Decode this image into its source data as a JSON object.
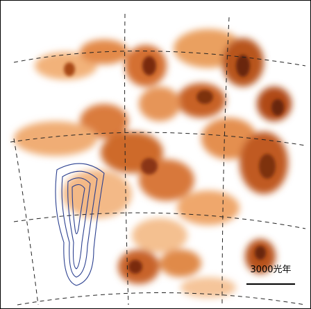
{
  "scale_bar": {
    "label": "3000光年"
  }
}
